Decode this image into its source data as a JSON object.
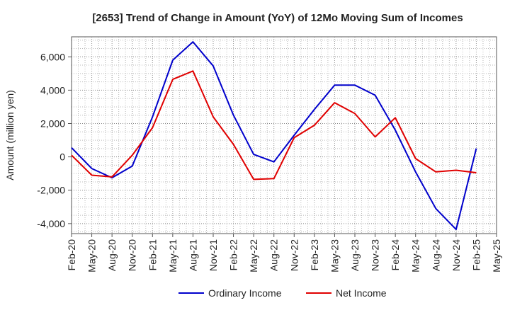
{
  "chart_data": {
    "type": "line",
    "title": "[2653]  Trend of Change in Amount (YoY) of 12Mo Moving Sum of Incomes",
    "xlabel": "",
    "ylabel": "Amount (million yen)",
    "categories": [
      "Feb-20",
      "May-20",
      "Aug-20",
      "Nov-20",
      "Feb-21",
      "May-21",
      "Aug-21",
      "Nov-21",
      "Feb-22",
      "May-22",
      "Aug-22",
      "Nov-22",
      "Feb-23",
      "May-23",
      "Aug-23",
      "Nov-23",
      "Feb-24",
      "May-24",
      "Aug-24",
      "Nov-24",
      "Feb-25",
      "May-25"
    ],
    "y_ticks": [
      -4000,
      -2000,
      0,
      2000,
      4000,
      6000
    ],
    "y_tick_labels": [
      "-4,000",
      "-2,000",
      "0",
      "2,000",
      "4,000",
      "6,000"
    ],
    "ylim": [
      -4600,
      7200
    ],
    "grid": true,
    "legend_position": "bottom",
    "series": [
      {
        "name": "Ordinary Income",
        "color": "#0000cc",
        "values": [
          550,
          -700,
          -1250,
          -550,
          2400,
          5800,
          6900,
          5450,
          2500,
          150,
          -300,
          1300,
          2850,
          4300,
          4300,
          3700,
          1600,
          -900,
          -3100,
          -4350,
          500,
          null
        ]
      },
      {
        "name": "Net Income",
        "color": "#e00000",
        "values": [
          100,
          -1100,
          -1200,
          100,
          1750,
          4650,
          5150,
          2400,
          750,
          -1350,
          -1300,
          1150,
          1900,
          3250,
          2600,
          1200,
          2350,
          -100,
          -900,
          -800,
          -950,
          null
        ]
      }
    ]
  }
}
